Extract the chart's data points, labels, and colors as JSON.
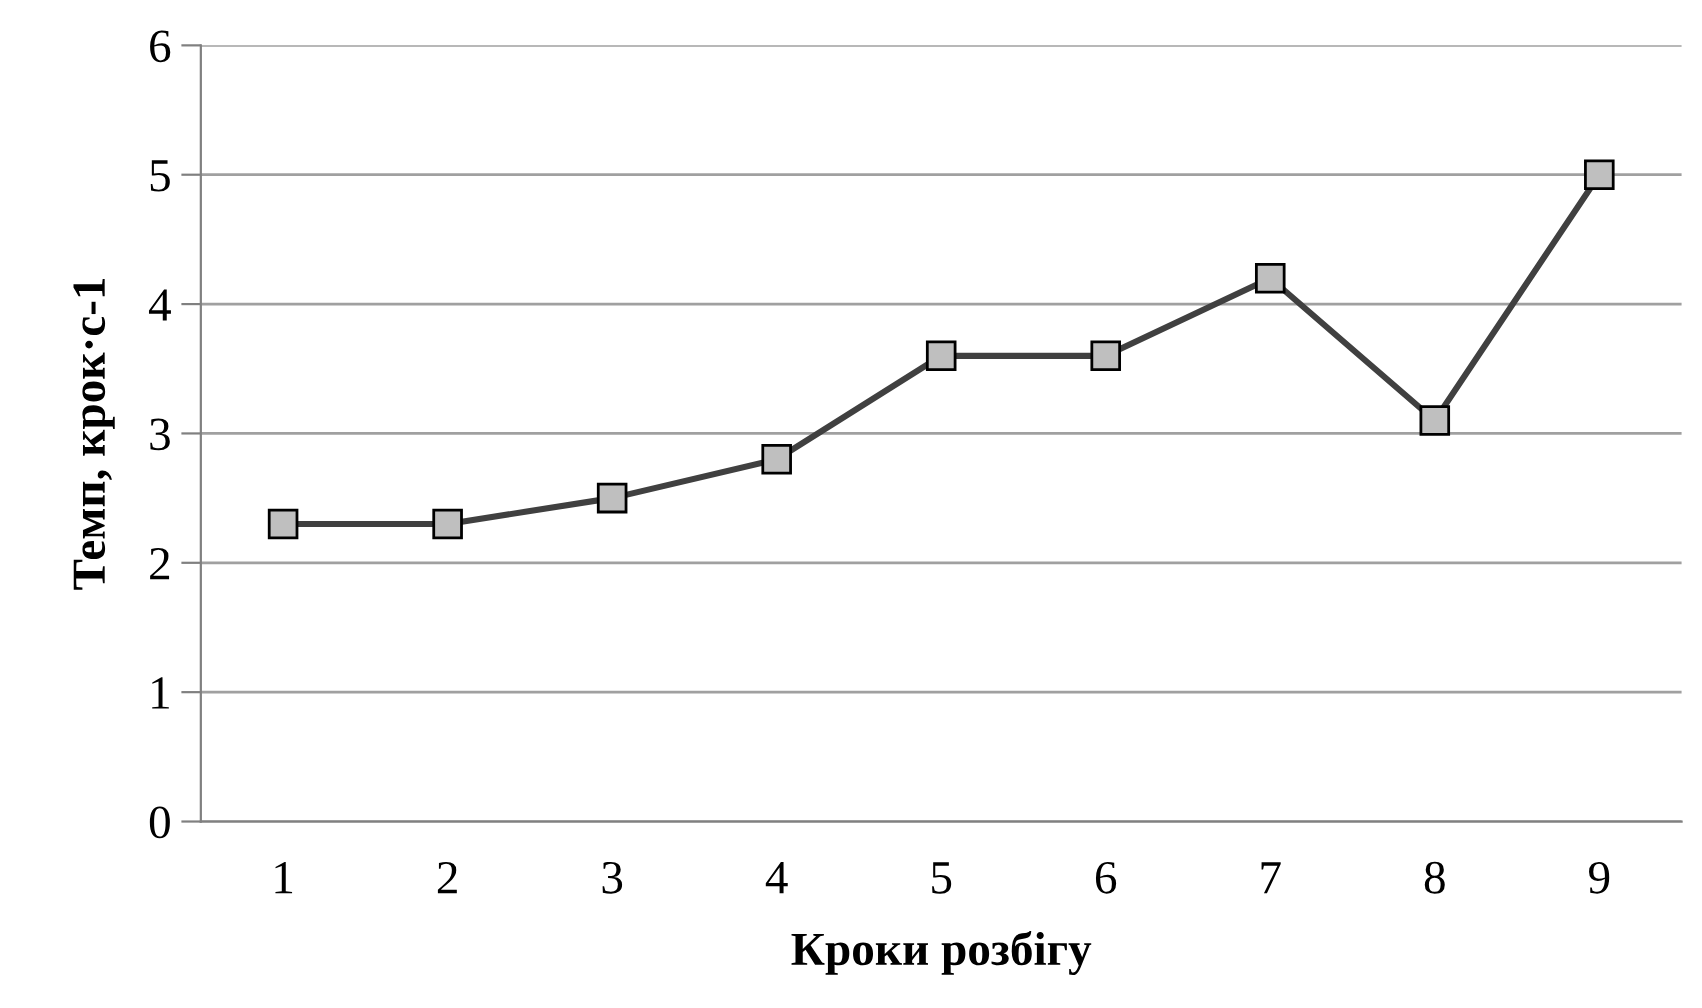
{
  "chart_data": {
    "type": "line",
    "xlabel": "Кроки розбігу",
    "ylabel": "Темп, крок·с-1",
    "categories": [
      "1",
      "2",
      "3",
      "4",
      "5",
      "6",
      "7",
      "8",
      "9"
    ],
    "series": [
      {
        "color": "#404040",
        "values": [
          2.3,
          2.3,
          2.5,
          2.8,
          3.6,
          3.6,
          4.2,
          3.1,
          5.0
        ]
      }
    ],
    "ylim": [
      0,
      6
    ],
    "yticks": [
      0,
      1,
      2,
      3,
      4,
      5,
      6
    ],
    "grid": "y",
    "marker": "square",
    "line_style": "solid",
    "legend": false
  }
}
